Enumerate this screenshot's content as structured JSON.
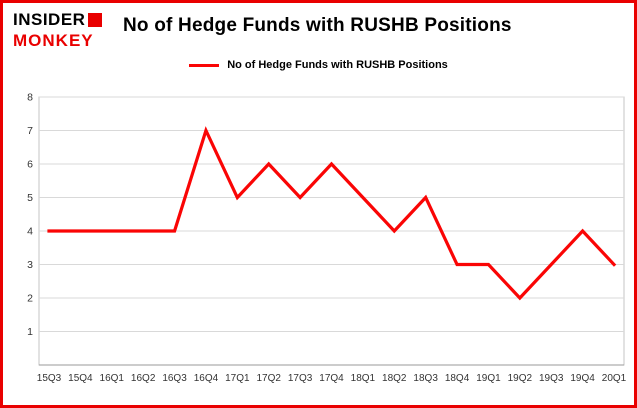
{
  "logo": {
    "line1": "INSIDER",
    "line2": "MONKEY"
  },
  "title": "No of Hedge Funds with RUSHB Positions",
  "legend": {
    "label": "No of Hedge Funds with RUSHB Positions"
  },
  "colors": {
    "accent_red": "#e90000",
    "line_red": "#fa0505",
    "grid_gray": "#d9d9d9",
    "plot_border_gray": "#c6c6c6",
    "axis_text": "#333333"
  },
  "chart_data": {
    "type": "line",
    "title": "No of Hedge Funds with RUSHB Positions",
    "series": [
      {
        "name": "No of Hedge Funds with RUSHB Positions",
        "values": [
          4,
          4,
          4,
          4,
          4,
          7,
          5,
          6,
          5,
          6,
          5,
          4,
          5,
          3,
          3,
          2,
          3,
          4,
          3
        ]
      }
    ],
    "categories": [
      "15Q3",
      "15Q4",
      "16Q1",
      "16Q2",
      "16Q3",
      "16Q4",
      "17Q1",
      "17Q2",
      "17Q3",
      "17Q4",
      "18Q1",
      "18Q2",
      "18Q3",
      "18Q4",
      "19Q1",
      "19Q2",
      "19Q3",
      "19Q4",
      "20Q1"
    ],
    "xlabel": "",
    "ylabel": "",
    "ylim": [
      0,
      8
    ],
    "yticks": [
      1,
      2,
      3,
      4,
      5,
      6,
      7,
      8
    ],
    "grid": true,
    "legend_position": "top",
    "line_color": "#fa0505",
    "line_width": 3.2
  }
}
